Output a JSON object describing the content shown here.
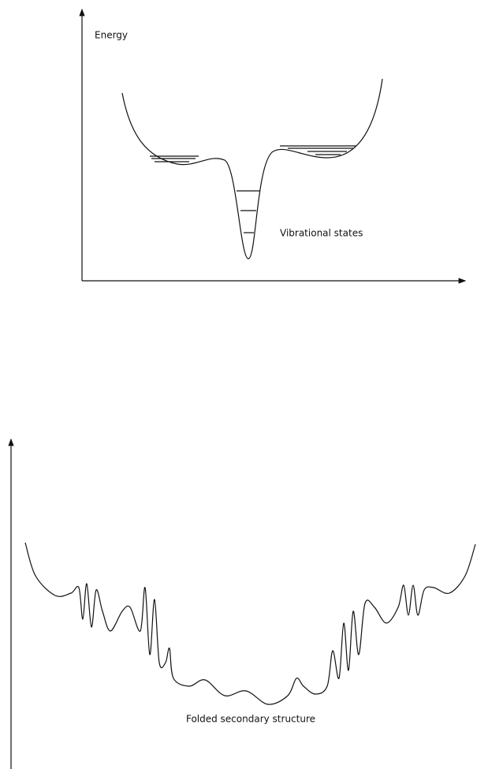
{
  "top": {
    "axis_label": "Energy",
    "label": "Vibrational states"
  },
  "bottom": {
    "label": "Folded secondary structure"
  }
}
